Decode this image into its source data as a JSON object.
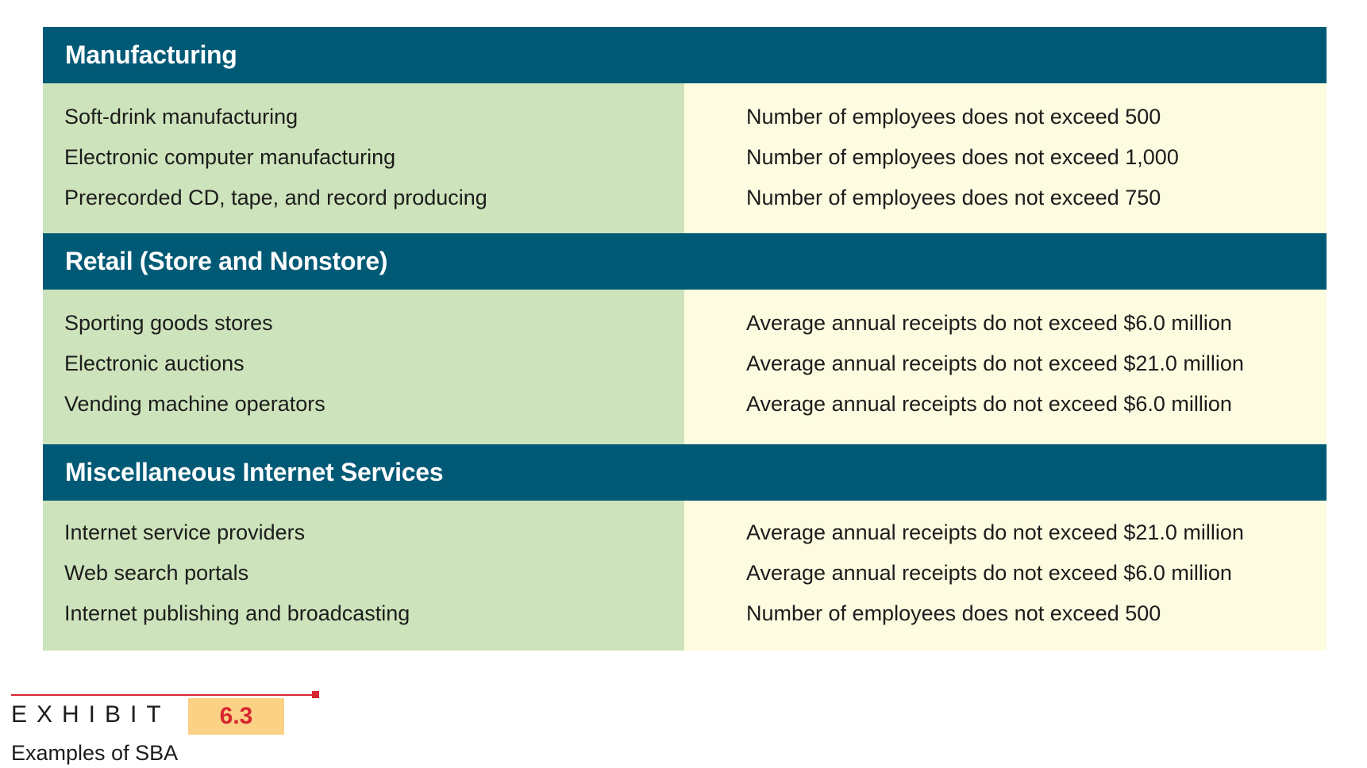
{
  "sections": [
    {
      "title": "Manufacturing",
      "rows": [
        {
          "industry": "Soft-drink manufacturing",
          "standard": "Number of employees does not exceed 500"
        },
        {
          "industry": "Electronic computer manufacturing",
          "standard": "Number of employees does not exceed 1,000"
        },
        {
          "industry": "Prerecorded CD, tape, and record producing",
          "standard": "Number of employees does not exceed 750"
        }
      ]
    },
    {
      "title": "Retail (Store and Nonstore)",
      "rows": [
        {
          "industry": "Sporting goods stores",
          "standard": "Average annual receipts do not exceed $6.0 million"
        },
        {
          "industry": "Electronic auctions",
          "standard": "Average annual receipts do not exceed $21.0 million"
        },
        {
          "industry": "Vending machine operators",
          "standard": "Average annual receipts do not exceed $6.0 million"
        }
      ]
    },
    {
      "title": "Miscellaneous Internet Services",
      "rows": [
        {
          "industry": "Internet service providers",
          "standard": "Average annual receipts do not exceed $21.0 million"
        },
        {
          "industry": "Web search portals",
          "standard": "Average annual receipts do not exceed $6.0 million"
        },
        {
          "industry": "Internet publishing and broadcasting",
          "standard": "Number of employees does not exceed 500"
        }
      ]
    }
  ],
  "exhibit": {
    "label": "EXHIBIT",
    "number": "6.3",
    "caption": "Examples of SBA"
  },
  "colors": {
    "header_bg": "#005a76",
    "left_column_bg": "#cde3bb",
    "right_column_bg": "#fdfbe0",
    "accent_red": "#d7262f",
    "exhibit_number_bg": "#fbd186"
  }
}
